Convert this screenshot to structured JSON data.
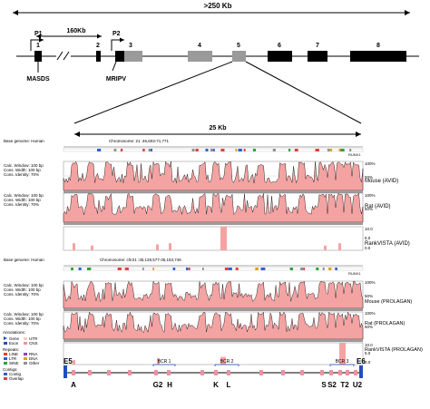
{
  "gene_map": {
    "total_span": ">250 Kb",
    "p1_label": "P1",
    "p2_label": "P2",
    "gap_span": "160Kb",
    "exons": [
      "1",
      "2",
      "3",
      "4",
      "5",
      "6",
      "7",
      "8"
    ],
    "motif_1": "MASDS",
    "motif_2": "MRIPV",
    "zoom_span": "25 Kb"
  },
  "panel_avid": {
    "base_genome": "Base genome: Human",
    "chromosome": "Chromosome:  21    :46,603-71,771",
    "gene_label": "RUNX1",
    "track_params": [
      "Calc. Window: 100 bp",
      "Cons. Width: 100 bp",
      "Cons. Identity: 70%"
    ],
    "tracks": [
      "Mouse (AVID)",
      "Rat (AVID)",
      "RankVISTA (AVID)"
    ],
    "pct_ticks": [
      "100%",
      "50%",
      "100%",
      "50%"
    ],
    "rank_ticks": [
      "10.0",
      "5.0",
      "0.0"
    ]
  },
  "panel_prolagan": {
    "base_genome": "Base genome: Human",
    "chromosome": "Chromosome: chr21   :35,128,577-35,153,746",
    "gene_label": "RUNX1",
    "track_params": [
      "Calc. Window: 100 bp",
      "Cons. Width: 100 bp",
      "Cons. Identity: 70%"
    ],
    "tracks": [
      "Mouse (PROLAGAN)",
      "Rat (PROLAGAN)",
      "RankVISTA (PROLAGAN)"
    ],
    "pct_ticks": [
      "100%",
      "50%",
      "100%",
      "50%"
    ],
    "rank_ticks": [
      "10.0",
      "5.0",
      "0.0"
    ]
  },
  "legend": {
    "annotations_title": "Annotations:",
    "gene": "Gene",
    "utr": "UTR",
    "exon": "Exon",
    "cns": "CNS",
    "repeats_title": "Repeats:",
    "line": "LINE",
    "rna": "RNA",
    "ltr": "LTR",
    "dna": "DNA",
    "sine": "SINE",
    "other": "Other",
    "contigs_title": "Contigs:",
    "contig": "Contig",
    "overlap": "Overlap"
  },
  "bottom_track": {
    "left_exon": "E5",
    "right_exon": "E6",
    "bcr_labels": [
      "BCR 1",
      "BCR 2",
      "BCR 3"
    ],
    "elements": [
      "A",
      "G2",
      "H",
      "K",
      "L",
      "S",
      "S2",
      "T2",
      "U2"
    ]
  },
  "colors": {
    "conservation_fill": "#f4a3a3",
    "rank_bar": "#f4a3a3",
    "exon_gray": "#9a9a9a",
    "accent_blue": "#1f4fbf",
    "marker_pink": "#f090a0"
  }
}
